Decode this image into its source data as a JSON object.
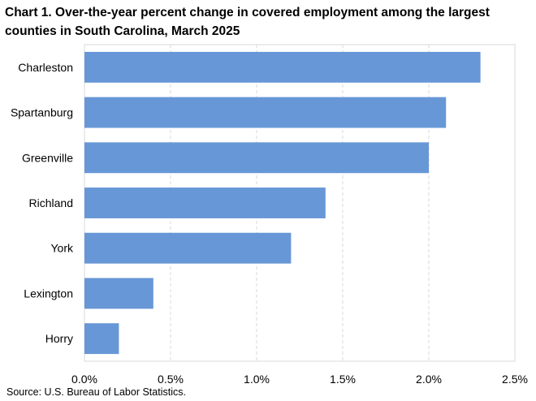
{
  "title": "Chart 1. Over-the-year percent change in covered employment among the largest counties in South Carolina, March 2025",
  "source": "Source: U.S. Bureau of Labor Statistics.",
  "chart_data": {
    "type": "bar",
    "orientation": "horizontal",
    "title": "Chart 1. Over-the-year percent change in covered employment among the largest counties in South Carolina, March 2025",
    "categories": [
      "Charleston",
      "Spartanburg",
      "Greenville",
      "Richland",
      "York",
      "Lexington",
      "Horry"
    ],
    "values": [
      2.3,
      2.1,
      2.0,
      1.4,
      1.2,
      0.4,
      0.2
    ],
    "xlim": [
      0,
      2.5
    ],
    "x_ticks": [
      "0.0%",
      "0.5%",
      "1.0%",
      "1.5%",
      "2.0%",
      "2.5%"
    ],
    "x_tick_values": [
      0,
      0.5,
      1.0,
      1.5,
      2.0,
      2.5
    ],
    "grid": "vertical-dashed",
    "legend": "none",
    "bar_color": "#6797d6"
  }
}
